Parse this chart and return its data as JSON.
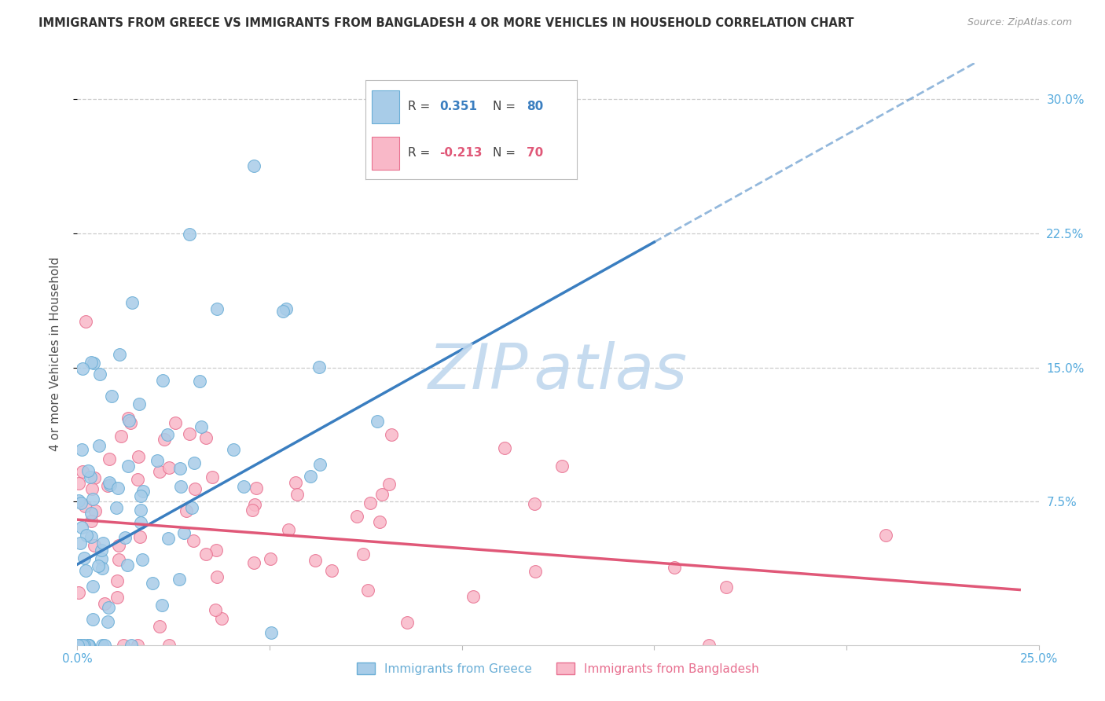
{
  "title": "IMMIGRANTS FROM GREECE VS IMMIGRANTS FROM BANGLADESH 4 OR MORE VEHICLES IN HOUSEHOLD CORRELATION CHART",
  "source": "Source: ZipAtlas.com",
  "ylabel": "4 or more Vehicles in Household",
  "xlim": [
    0.0,
    0.25
  ],
  "ylim": [
    -0.005,
    0.32
  ],
  "greece_R": 0.351,
  "greece_N": 80,
  "bangladesh_R": -0.213,
  "bangladesh_N": 70,
  "greece_color": "#a8cce8",
  "greece_edge_color": "#6aaed6",
  "bangladesh_color": "#f9b8c8",
  "bangladesh_edge_color": "#e87090",
  "greece_line_color": "#3a7ec0",
  "bangladesh_line_color": "#e05878",
  "watermark_color": "#c0d8ee",
  "legend_label_greece": "Immigrants from Greece",
  "legend_label_bangladesh": "Immigrants from Bangladesh",
  "background_color": "#ffffff",
  "grid_color": "#cccccc",
  "title_color": "#303030",
  "axis_label_color": "#505050",
  "tick_label_color": "#55aadd",
  "yticks": [
    0.075,
    0.15,
    0.225,
    0.3
  ],
  "yticklabels": [
    "7.5%",
    "15.0%",
    "22.5%",
    "30.0%"
  ]
}
